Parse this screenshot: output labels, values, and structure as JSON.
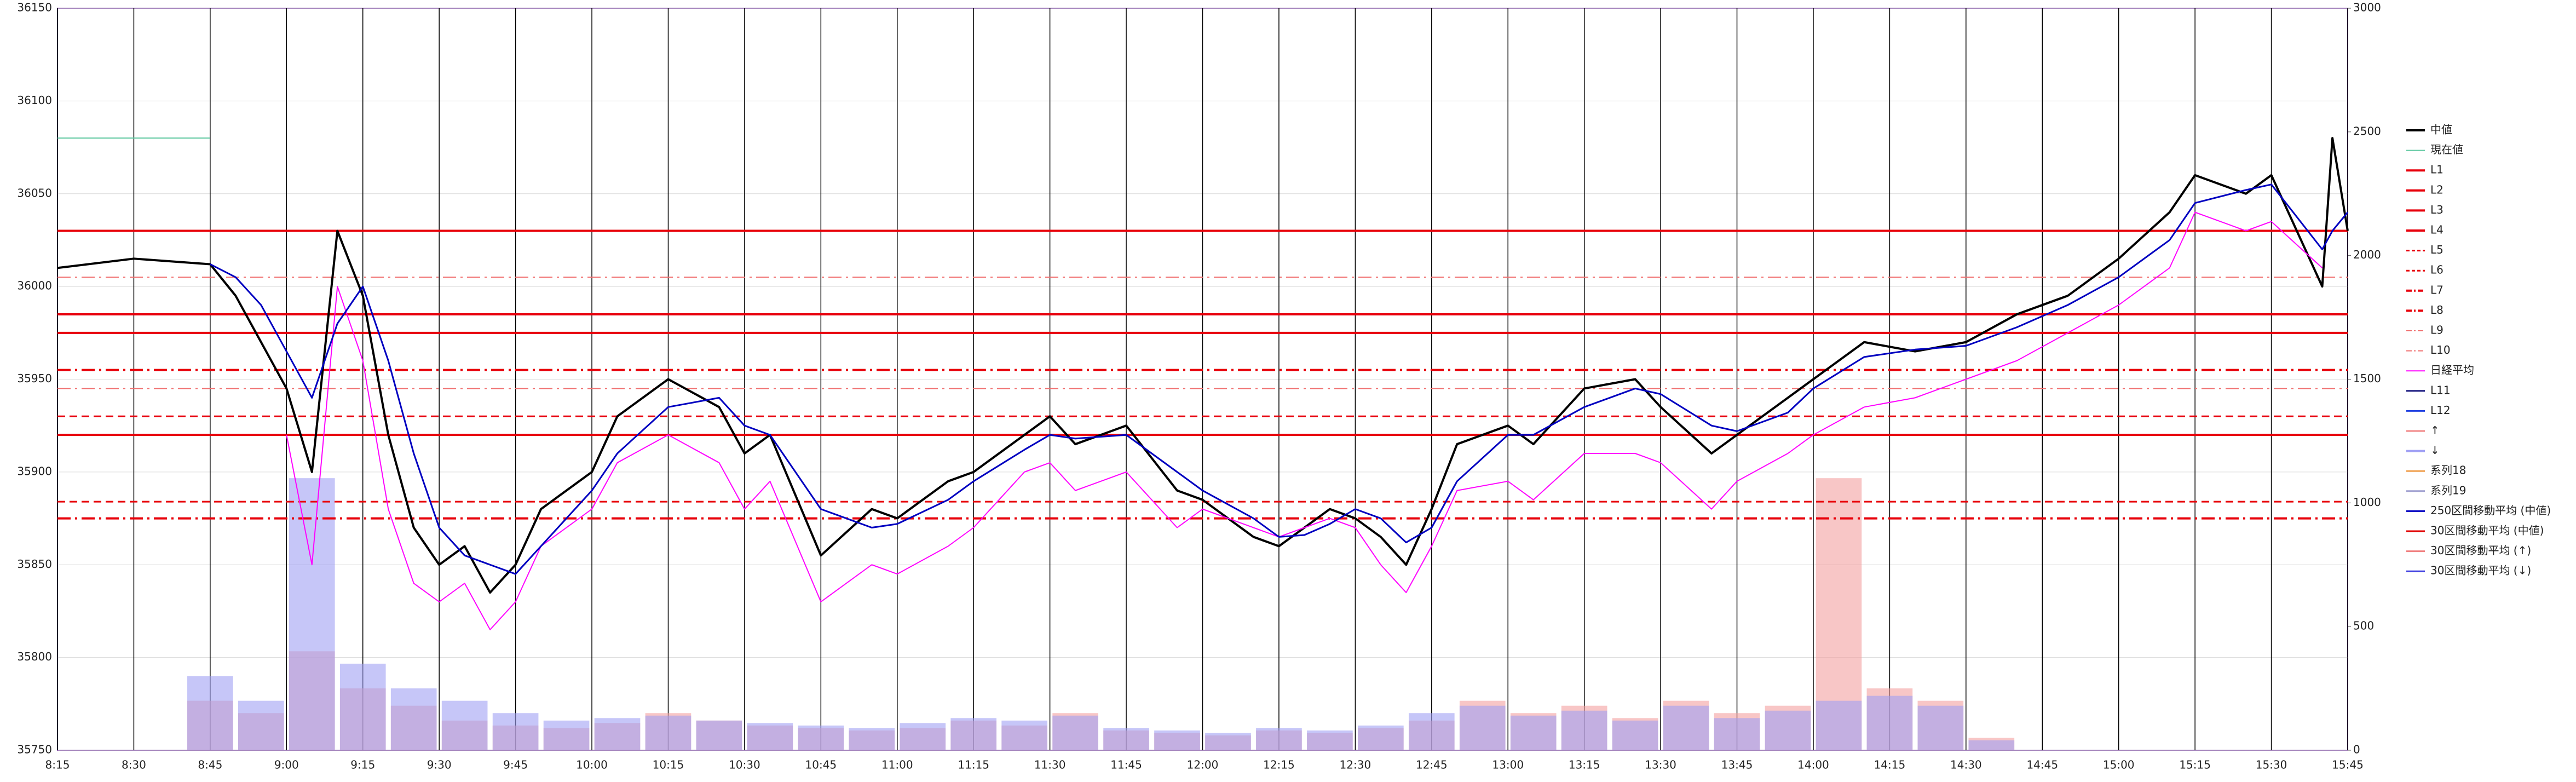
{
  "chart_data": {
    "type": "line",
    "xlim": [
      "8:15",
      "15:45"
    ],
    "xticks": [
      "8:15",
      "8:30",
      "8:45",
      "9:00",
      "9:15",
      "9:30",
      "9:45",
      "10:00",
      "10:15",
      "10:30",
      "10:45",
      "11:00",
      "11:15",
      "11:30",
      "11:45",
      "12:00",
      "12:15",
      "12:30",
      "12:45",
      "13:00",
      "13:15",
      "13:30",
      "13:45",
      "14:00",
      "14:15",
      "14:30",
      "14:45",
      "15:00",
      "15:15",
      "15:30",
      "15:45"
    ],
    "ylim": [
      35750,
      36150
    ],
    "yticks": [
      35750,
      35800,
      35850,
      35900,
      35950,
      36000,
      36050,
      36100,
      36150
    ],
    "y2lim": [
      0,
      3000
    ],
    "y2ticks": [
      0,
      500,
      1000,
      1500,
      2000,
      2500,
      3000
    ],
    "grid": true,
    "legend": "right",
    "x": [
      "8:15",
      "8:30",
      "8:45",
      "8:50",
      "8:55",
      "9:00",
      "9:05",
      "9:10",
      "9:15",
      "9:20",
      "9:25",
      "9:30",
      "9:35",
      "9:40",
      "9:45",
      "9:50",
      "10:00",
      "10:05",
      "10:15",
      "10:25",
      "10:30",
      "10:35",
      "10:45",
      "10:55",
      "11:00",
      "11:10",
      "11:15",
      "11:25",
      "11:30",
      "11:35",
      "11:45",
      "11:55",
      "12:00",
      "12:10",
      "12:15",
      "12:20",
      "12:25",
      "12:30",
      "12:35",
      "12:40",
      "12:45",
      "12:50",
      "13:00",
      "13:05",
      "13:15",
      "13:25",
      "13:30",
      "13:40",
      "13:45",
      "13:55",
      "14:00",
      "14:10",
      "14:20",
      "14:30",
      "14:40",
      "14:50",
      "15:00",
      "15:10",
      "15:15",
      "15:25",
      "15:30",
      "15:40",
      "15:42",
      "15:45"
    ],
    "series": [
      {
        "name": "中値",
        "color": "#000000",
        "width": 4,
        "values": [
          36010,
          36015,
          36012,
          35995,
          35970,
          35945,
          35900,
          36030,
          35995,
          35920,
          35870,
          35850,
          35860,
          35835,
          35850,
          35880,
          35900,
          35930,
          35950,
          35935,
          35910,
          35920,
          35855,
          35880,
          35875,
          35895,
          35900,
          35920,
          35930,
          35915,
          35925,
          35890,
          35885,
          35865,
          35860,
          35870,
          35880,
          35875,
          35865,
          35850,
          35880,
          35915,
          35925,
          35915,
          35945,
          35950,
          35935,
          35910,
          35920,
          35940,
          35950,
          35970,
          35965,
          35970,
          35985,
          35995,
          36015,
          36040,
          36060,
          36050,
          36060,
          36000,
          36080,
          36030
        ]
      },
      {
        "name": "現在値",
        "color": "#5fc8a0",
        "width": 2,
        "x": [
          "8:15",
          "8:45"
        ],
        "values": [
          36080,
          36080
        ]
      },
      {
        "name": "L1",
        "color": "#e8000b",
        "style": "solid",
        "width": 4,
        "level": 36030
      },
      {
        "name": "L2",
        "color": "#e8000b",
        "style": "solid",
        "width": 4,
        "level": 35985
      },
      {
        "name": "L3",
        "color": "#e8000b",
        "style": "solid",
        "width": 4,
        "level": 35975
      },
      {
        "name": "L4",
        "color": "#e8000b",
        "style": "solid",
        "width": 4,
        "level": 35920
      },
      {
        "name": "L5",
        "color": "#e8000b",
        "style": "dash",
        "width": 3,
        "level": 35930
      },
      {
        "name": "L6",
        "color": "#e8000b",
        "style": "dash",
        "width": 3,
        "level": 35884
      },
      {
        "name": "L7",
        "color": "#e8000b",
        "style": "dashdot",
        "width": 4,
        "level": 35955
      },
      {
        "name": "L8",
        "color": "#e8000b",
        "style": "dashdot",
        "width": 4,
        "level": 35875
      },
      {
        "name": "L9",
        "color": "#f07070",
        "style": "dashdot",
        "width": 2,
        "level": 36005
      },
      {
        "name": "L10",
        "color": "#f07070",
        "style": "dashdot",
        "width": 2,
        "level": 35945
      },
      {
        "name": "日経平均",
        "color": "#ff00ff",
        "width": 2,
        "values": [
          null,
          null,
          null,
          null,
          null,
          35920,
          35850,
          36000,
          35960,
          35880,
          35840,
          35830,
          35840,
          35815,
          35830,
          35860,
          35880,
          35905,
          35920,
          35905,
          35880,
          35895,
          35830,
          35850,
          35845,
          35860,
          35870,
          35900,
          35905,
          35890,
          35900,
          35870,
          35880,
          35870,
          35865,
          35870,
          35875,
          35870,
          35850,
          35835,
          35860,
          35890,
          35895,
          35885,
          35910,
          35910,
          35905,
          35880,
          35895,
          35910,
          35920,
          35935,
          35940,
          35950,
          35960,
          35975,
          35990,
          36010,
          36040,
          36030,
          36035,
          36010,
          null,
          null
        ]
      },
      {
        "name": "L11",
        "color": "#1a1a80",
        "style": "solid",
        "width": 3
      },
      {
        "name": "L12",
        "color": "#2040e0",
        "style": "solid",
        "width": 3
      },
      {
        "name": "↑",
        "color": "#f4a0a0",
        "kind": "bar",
        "axis": "y2",
        "x": [
          "8:45",
          "8:55",
          "9:05",
          "9:15",
          "9:25",
          "9:35",
          "9:45",
          "9:55",
          "10:05",
          "10:15",
          "10:25",
          "10:35",
          "10:45",
          "10:55",
          "11:05",
          "11:15",
          "11:25",
          "11:35",
          "11:45",
          "11:55",
          "12:05",
          "12:15",
          "12:25",
          "12:35",
          "12:45",
          "12:55",
          "13:05",
          "13:15",
          "13:25",
          "13:35",
          "13:45",
          "13:55",
          "14:05",
          "14:15",
          "14:25",
          "14:35"
        ],
        "values": [
          200,
          150,
          400,
          250,
          180,
          120,
          100,
          90,
          110,
          150,
          120,
          100,
          90,
          80,
          90,
          120,
          100,
          150,
          80,
          70,
          60,
          80,
          70,
          90,
          120,
          200,
          150,
          180,
          130,
          200,
          150,
          180,
          1100,
          250,
          200,
          50
        ]
      },
      {
        "name": "↓",
        "color": "#a0a0f4",
        "kind": "bar",
        "axis": "y2",
        "x": [
          "8:45",
          "8:55",
          "9:05",
          "9:15",
          "9:25",
          "9:35",
          "9:45",
          "9:55",
          "10:05",
          "10:15",
          "10:25",
          "10:35",
          "10:45",
          "10:55",
          "11:05",
          "11:15",
          "11:25",
          "11:35",
          "11:45",
          "11:55",
          "12:05",
          "12:15",
          "12:25",
          "12:35",
          "12:45",
          "12:55",
          "13:05",
          "13:15",
          "13:25",
          "13:35",
          "13:45",
          "13:55",
          "14:05",
          "14:15",
          "14:25",
          "14:35"
        ],
        "values": [
          300,
          200,
          1100,
          350,
          250,
          200,
          150,
          120,
          130,
          140,
          120,
          110,
          100,
          90,
          110,
          130,
          120,
          140,
          90,
          80,
          70,
          90,
          80,
          100,
          150,
          180,
          140,
          160,
          120,
          180,
          130,
          160,
          200,
          220,
          180,
          40
        ]
      },
      {
        "name": "系列18",
        "color": "#f0a050",
        "width": 3
      },
      {
        "name": "系列19",
        "color": "#a0a0d0",
        "width": 3
      },
      {
        "name": "250区間移動平均 (中値)",
        "color": "#0000c0",
        "width": 3,
        "values": [
          null,
          null,
          36012,
          36005,
          35990,
          35965,
          35940,
          35980,
          36000,
          35960,
          35910,
          35870,
          35855,
          35850,
          35845,
          35860,
          35890,
          35910,
          35935,
          35940,
          35925,
          35920,
          35880,
          35870,
          35872,
          35885,
          35895,
          35912,
          35920,
          35918,
          35920,
          35900,
          35890,
          35875,
          35865,
          35866,
          35872,
          35880,
          35875,
          35862,
          35870,
          35895,
          35920,
          35920,
          35935,
          35945,
          35942,
          35925,
          35922,
          35932,
          35945,
          35962,
          35966,
          35968,
          35978,
          35990,
          36005,
          36025,
          36045,
          36052,
          36055,
          36020,
          36030,
          36040
        ]
      },
      {
        "name": "30区間移動平均 (中値)",
        "color": "#e00000",
        "width": 3
      },
      {
        "name": "30区間移動平均 (↑)",
        "color": "#f08080",
        "width": 3
      },
      {
        "name": "30区間移動平均 (↓)",
        "color": "#4040e0",
        "width": 3
      }
    ]
  }
}
